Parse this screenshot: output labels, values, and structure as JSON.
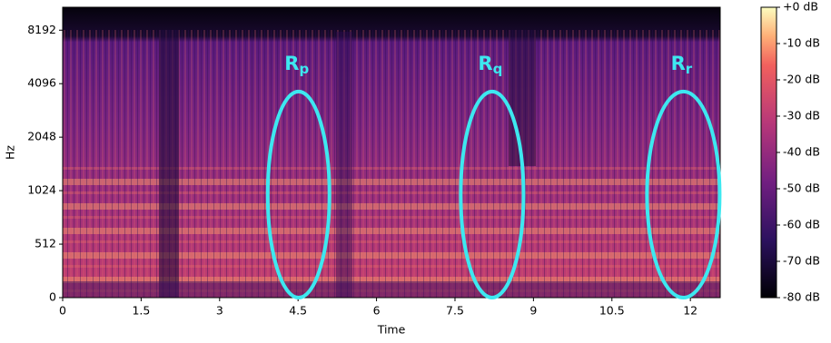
{
  "chart_data": {
    "type": "spectrogram",
    "xlabel": "Time",
    "ylabel": "Hz",
    "xlim": [
      0,
      12.57
    ],
    "xticks": [
      0,
      1.5,
      3,
      4.5,
      6,
      7.5,
      9,
      10.5,
      12
    ],
    "ylim": [
      0,
      11025
    ],
    "yticks": [
      0,
      512,
      1024,
      2048,
      4096,
      8192
    ],
    "yscale": "symlog",
    "linthresh": 1024,
    "colorbar": {
      "lim": [
        -80,
        0
      ],
      "colormap": "magma",
      "ticks": [
        {
          "value": 0,
          "label": "+0 dB"
        },
        {
          "value": -10,
          "label": "-10 dB"
        },
        {
          "value": -20,
          "label": "-20 dB"
        },
        {
          "value": -30,
          "label": "-30 dB"
        },
        {
          "value": -40,
          "label": "-40 dB"
        },
        {
          "value": -50,
          "label": "-50 dB"
        },
        {
          "value": -60,
          "label": "-60 dB"
        },
        {
          "value": -70,
          "label": "-70 dB"
        },
        {
          "value": -80,
          "label": "-80 dB"
        }
      ]
    },
    "annotations": [
      {
        "text": "R",
        "sub": "p",
        "color": "#3de8f0",
        "xlim": [
          3.92,
          5.1
        ],
        "ylim": [
          0,
          3700
        ]
      },
      {
        "text": "R",
        "sub": "q",
        "color": "#3de8f0",
        "xlim": [
          7.61,
          8.81
        ],
        "ylim": [
          0,
          3700
        ]
      },
      {
        "text": "R",
        "sub": "r",
        "color": "#3de8f0",
        "xlim": [
          11.17,
          12.56
        ],
        "ylim": [
          0,
          3700
        ]
      }
    ]
  }
}
